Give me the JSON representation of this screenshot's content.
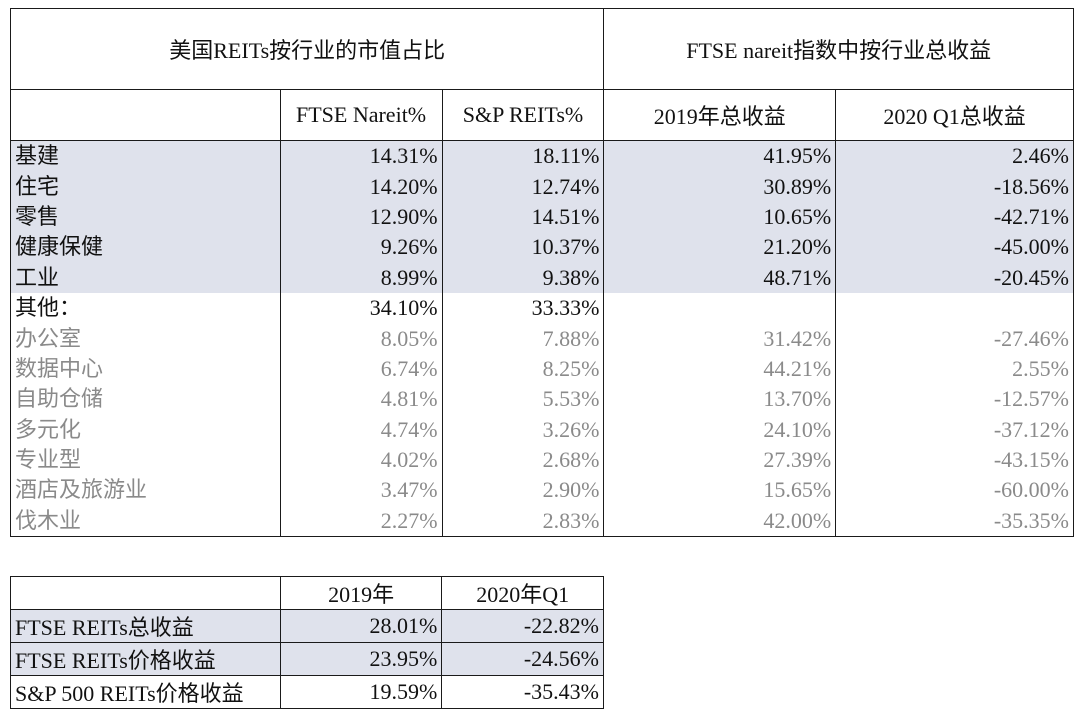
{
  "main_table": {
    "group_headers": {
      "market_cap": "美国REITs按行业的市值占比",
      "total_return": "FTSE nareit指数中按行业总收益"
    },
    "column_headers": [
      "",
      "FTSE Nareit%",
      "S&P REITs%",
      "2019年总收益",
      "2020 Q1总收益"
    ],
    "rows": [
      {
        "label": "基建",
        "ftse_nareit": "14.31%",
        "sp_reits": "18.11%",
        "return_2019": "41.95%",
        "return_2020q1": "2.46%"
      },
      {
        "label": "住宅",
        "ftse_nareit": "14.20%",
        "sp_reits": "12.74%",
        "return_2019": "30.89%",
        "return_2020q1": "-18.56%"
      },
      {
        "label": "零售",
        "ftse_nareit": "12.90%",
        "sp_reits": "14.51%",
        "return_2019": "10.65%",
        "return_2020q1": "-42.71%"
      },
      {
        "label": "健康保健",
        "ftse_nareit": "9.26%",
        "sp_reits": "10.37%",
        "return_2019": "21.20%",
        "return_2020q1": "-45.00%"
      },
      {
        "label": "工业",
        "ftse_nareit": "8.99%",
        "sp_reits": "9.38%",
        "return_2019": "48.71%",
        "return_2020q1": "-20.45%"
      },
      {
        "label": "其他：",
        "ftse_nareit": "34.10%",
        "sp_reits": "33.33%",
        "return_2019": "",
        "return_2020q1": ""
      },
      {
        "label": "办公室",
        "ftse_nareit": "8.05%",
        "sp_reits": "7.88%",
        "return_2019": "31.42%",
        "return_2020q1": "-27.46%"
      },
      {
        "label": "数据中心",
        "ftse_nareit": "6.74%",
        "sp_reits": "8.25%",
        "return_2019": "44.21%",
        "return_2020q1": "2.55%"
      },
      {
        "label": "自助仓储",
        "ftse_nareit": "4.81%",
        "sp_reits": "5.53%",
        "return_2019": "13.70%",
        "return_2020q1": "-12.57%"
      },
      {
        "label": "多元化",
        "ftse_nareit": "4.74%",
        "sp_reits": "3.26%",
        "return_2019": "24.10%",
        "return_2020q1": "-37.12%"
      },
      {
        "label": "专业型",
        "ftse_nareit": "4.02%",
        "sp_reits": "2.68%",
        "return_2019": "27.39%",
        "return_2020q1": "-43.15%"
      },
      {
        "label": "酒店及旅游业",
        "ftse_nareit": "3.47%",
        "sp_reits": "2.90%",
        "return_2019": "15.65%",
        "return_2020q1": "-60.00%"
      },
      {
        "label": "伐木业",
        "ftse_nareit": "2.27%",
        "sp_reits": "2.83%",
        "return_2019": "42.00%",
        "return_2020q1": "-35.35%"
      }
    ]
  },
  "summary_table": {
    "column_headers": [
      "",
      "2019年",
      "2020年Q1"
    ],
    "rows": [
      {
        "label": "FTSE REITs总收益",
        "y2019": "28.01%",
        "y2020q1": "-22.82%"
      },
      {
        "label": "FTSE REITs价格收益",
        "y2019": "23.95%",
        "y2020q1": "-24.56%"
      },
      {
        "label": "S&P 500 REITs价格收益",
        "y2019": "19.59%",
        "y2020q1": "-35.43%"
      }
    ]
  },
  "colors": {
    "row_shade": "#dfe2ec",
    "muted_text": "#8a8a8a",
    "border": "#1a1a1a"
  }
}
